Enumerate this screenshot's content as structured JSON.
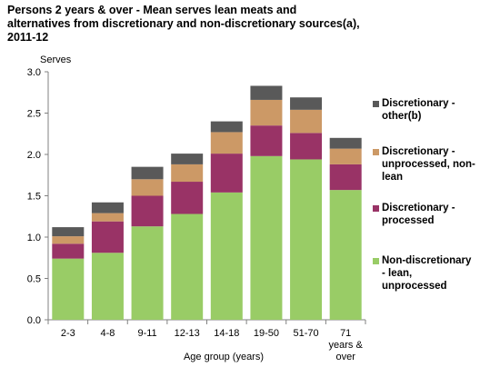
{
  "chart_data": {
    "type": "bar",
    "stacked": true,
    "title_lines": [
      "Persons 2 years  & over - Mean serves lean meats and",
      "alternatives from discretionary and non-discretionary sources(a),",
      "2011-12"
    ],
    "ylabel": "Serves",
    "xlabel": "Age group (years)",
    "ylim": [
      0,
      3.0
    ],
    "yticks": [
      "0.0",
      "0.5",
      "1.0",
      "1.5",
      "2.0",
      "2.5",
      "3.0"
    ],
    "ytick_values": [
      0,
      0.5,
      1.0,
      1.5,
      2.0,
      2.5,
      3.0
    ],
    "categories": [
      [
        "2-3"
      ],
      [
        "4-8"
      ],
      [
        "9-11"
      ],
      [
        "12-13"
      ],
      [
        "14-18"
      ],
      [
        "19-50"
      ],
      [
        "51-70"
      ],
      [
        "71",
        "years &",
        "over"
      ]
    ],
    "grid": false,
    "legend_position": "right",
    "series": [
      {
        "name": "Non-discretionary - lean, unprocessed",
        "legend_lines": [
          "Non-discretionary",
          "- lean,",
          "unprocessed"
        ],
        "color": "#99cc66",
        "values": [
          0.74,
          0.81,
          1.13,
          1.28,
          1.54,
          1.98,
          1.94,
          1.57
        ]
      },
      {
        "name": "Discretionary - processed",
        "legend_lines": [
          "Discretionary -",
          "processed"
        ],
        "color": "#993366",
        "values": [
          0.18,
          0.38,
          0.37,
          0.39,
          0.47,
          0.37,
          0.32,
          0.31
        ]
      },
      {
        "name": "Discretionary - unprocessed, non-lean",
        "legend_lines": [
          "Discretionary -",
          "unprocessed, non-",
          "lean"
        ],
        "color": "#cc9966",
        "values": [
          0.09,
          0.1,
          0.2,
          0.21,
          0.26,
          0.31,
          0.28,
          0.19
        ]
      },
      {
        "name": "Discretionary - other(b)",
        "legend_lines": [
          "Discretionary -",
          "other(b)"
        ],
        "color": "#595959",
        "values": [
          0.11,
          0.13,
          0.15,
          0.13,
          0.13,
          0.17,
          0.15,
          0.13
        ]
      }
    ]
  }
}
